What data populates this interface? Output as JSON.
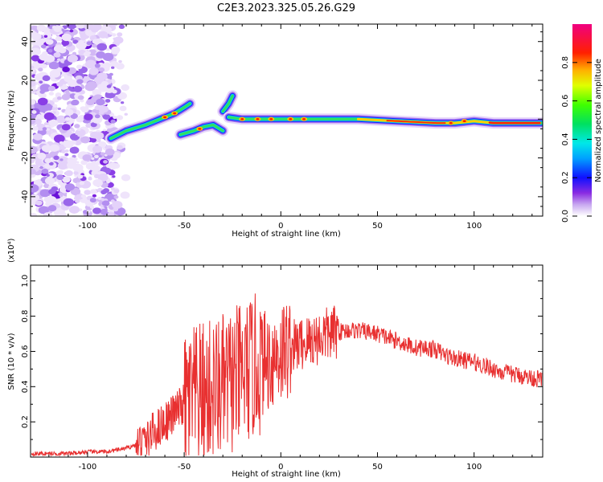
{
  "title": "C2E3.2023.325.05.26.G29",
  "chart_data": [
    {
      "type": "heatmap",
      "title": "C2E3.2023.325.05.26.G29",
      "xlabel": "Height of straight line (km)",
      "ylabel": "Frequency (Hz)",
      "xlim": [
        -129.5,
        135.5
      ],
      "ylim": [
        -50,
        49
      ],
      "xticks": [
        -100,
        -50,
        0,
        50,
        100
      ],
      "yticks": [
        -40,
        -20,
        0,
        20,
        40
      ],
      "colorbar": {
        "label": "Normalized spectral amplitude",
        "range": [
          0,
          1
        ],
        "ticks": [
          0.0,
          0.2,
          0.4,
          0.6,
          0.8
        ],
        "tick_labels": [
          "0.0",
          "0.2",
          "0.4",
          "0.6",
          "0.8"
        ]
      },
      "ridges": [
        {
          "x": [
            -88,
            -80,
            -70,
            -60,
            -55,
            -50,
            -47
          ],
          "y": [
            -10,
            -6,
            -3,
            1,
            3,
            6,
            8
          ]
        },
        {
          "x": [
            -52,
            -45,
            -40,
            -35,
            -30
          ],
          "y": [
            -8,
            -6,
            -4,
            -3,
            -6
          ]
        },
        {
          "x": [
            -30,
            -27,
            -25
          ],
          "y": [
            4,
            8,
            12
          ]
        },
        {
          "x": [
            -27,
            -20,
            -15,
            -10,
            0,
            20,
            40,
            60,
            80,
            90,
            100,
            110,
            135
          ],
          "y": [
            1,
            0,
            0,
            0,
            0,
            0,
            0,
            -1,
            -2,
            -2,
            -1,
            -2,
            -2
          ]
        }
      ]
    },
    {
      "type": "line",
      "xlabel": "Height of straight line (km)",
      "ylabel": "SNR (10 * v/v)",
      "y_multiplier": "(x10⁴)",
      "xlim": [
        -129.5,
        135.5
      ],
      "ylim": [
        0,
        1.09
      ],
      "xticks": [
        -100,
        -50,
        0,
        50,
        100
      ],
      "yticks": [
        0.2,
        0.4,
        0.6,
        0.8,
        1.0
      ],
      "series": [
        {
          "color": "#e83030",
          "x": [
            -129,
            -120,
            -110,
            -100,
            -90,
            -85,
            -80,
            -75,
            -70,
            -65,
            -60,
            -55,
            -50,
            -45,
            -40,
            -35,
            -30,
            -25,
            -20,
            -15,
            -10,
            -5,
            0,
            5,
            10,
            15,
            20,
            25,
            30,
            35,
            40,
            45,
            50,
            55,
            60,
            65,
            70,
            75,
            80,
            85,
            90,
            95,
            100,
            105,
            110,
            115,
            120,
            125,
            130,
            135
          ],
          "y": [
            0.02,
            0.02,
            0.02,
            0.03,
            0.03,
            0.04,
            0.05,
            0.07,
            0.1,
            0.15,
            0.2,
            0.25,
            0.3,
            0.33,
            0.36,
            0.38,
            0.4,
            0.43,
            0.46,
            0.5,
            0.53,
            0.56,
            0.6,
            0.62,
            0.64,
            0.66,
            0.68,
            0.7,
            0.71,
            0.72,
            0.72,
            0.71,
            0.7,
            0.68,
            0.66,
            0.64,
            0.62,
            0.62,
            0.61,
            0.58,
            0.56,
            0.55,
            0.54,
            0.52,
            0.5,
            0.48,
            0.47,
            0.46,
            0.45,
            0.44
          ]
        }
      ]
    }
  ]
}
